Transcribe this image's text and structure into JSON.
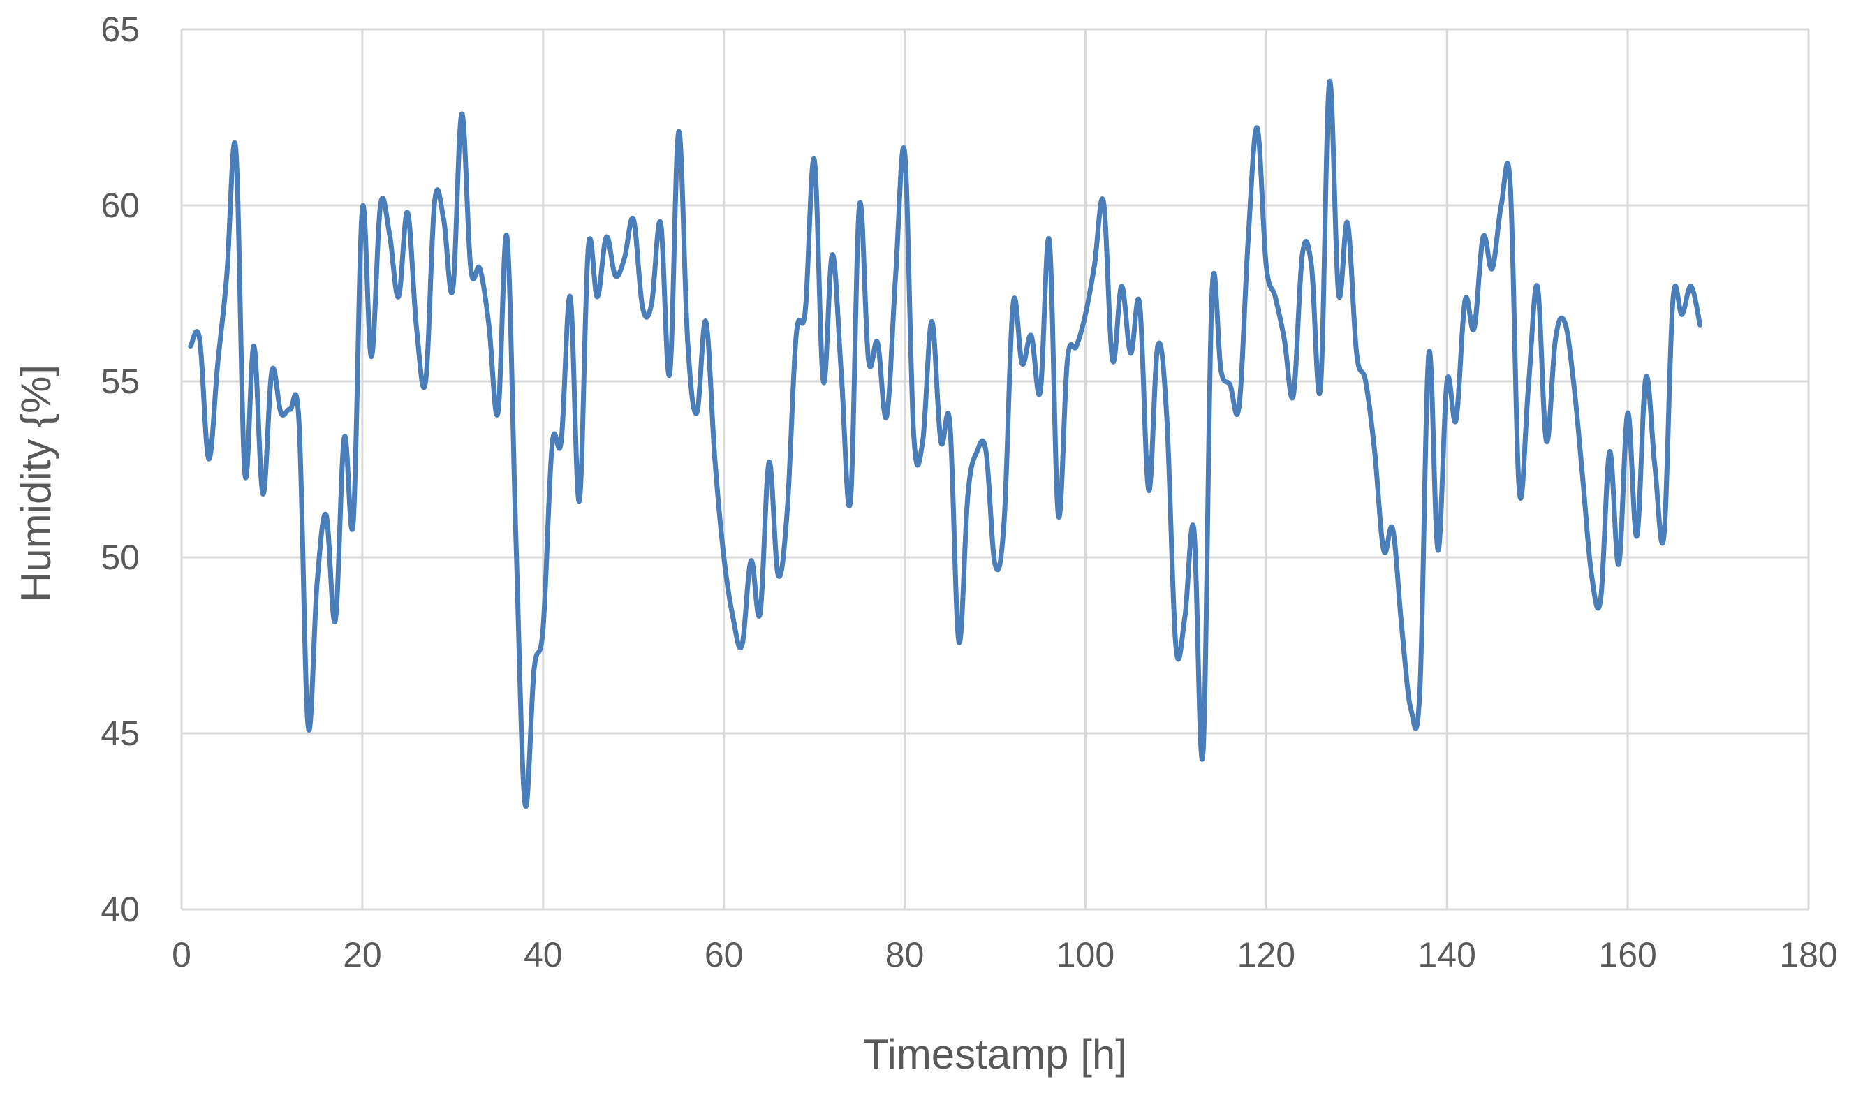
{
  "chart_data": {
    "type": "line",
    "title": "",
    "xlabel": "Timestamp [h]",
    "ylabel": "Humidity {%]",
    "xlim": [
      0,
      180
    ],
    "ylim": [
      40,
      65
    ],
    "x_ticks": [
      0,
      20,
      40,
      60,
      80,
      100,
      120,
      140,
      160,
      180
    ],
    "y_ticks": [
      40,
      45,
      50,
      55,
      60,
      65
    ],
    "x_tick_labels": [
      "0",
      "20",
      "40",
      "60",
      "80",
      "100",
      "120",
      "140",
      "160",
      "180"
    ],
    "y_tick_labels": [
      "40",
      "45",
      "50",
      "55",
      "60",
      "65"
    ],
    "grid": true,
    "legend": "none",
    "colors": {
      "series": "#4a7ebb",
      "grid": "#d9d9d9",
      "text": "#595959"
    },
    "series": [
      {
        "x": [
          1,
          2,
          3,
          4,
          5,
          6,
          7,
          8,
          9,
          10,
          11,
          12,
          13,
          14,
          15,
          16,
          17,
          18,
          19,
          20,
          21,
          22,
          23,
          24,
          25,
          26,
          27,
          28,
          29,
          30,
          31,
          32,
          33,
          34,
          35,
          36,
          37,
          38,
          39,
          40,
          41,
          42,
          43,
          44,
          45,
          46,
          47,
          48,
          49,
          50,
          51,
          52,
          53,
          54,
          55,
          56,
          57,
          58,
          59,
          60,
          61,
          62,
          63,
          64,
          65,
          66,
          67,
          68,
          69,
          70,
          71,
          72,
          73,
          74,
          75,
          76,
          77,
          78,
          79,
          80,
          81,
          82,
          83,
          84,
          85,
          86,
          87,
          88,
          89,
          90,
          91,
          92,
          93,
          94,
          95,
          96,
          97,
          98,
          99,
          100,
          101,
          102,
          103,
          104,
          105,
          106,
          107,
          108,
          109,
          110,
          111,
          112,
          113,
          114,
          115,
          116,
          117,
          118,
          119,
          120,
          121,
          122,
          123,
          124,
          125,
          126,
          127,
          128,
          129,
          130,
          131,
          132,
          133,
          134,
          135,
          136,
          137,
          138,
          139,
          140,
          141,
          142,
          143,
          144,
          145,
          146,
          147,
          148,
          149,
          150,
          151,
          152,
          153,
          154,
          155,
          156,
          157,
          158,
          159,
          160,
          161,
          162,
          163,
          164,
          165,
          166,
          167,
          168
        ],
        "values": [
          56.0,
          56.2,
          52.8,
          55.5,
          58.0,
          61.6,
          52.4,
          56.0,
          51.8,
          55.3,
          54.1,
          54.2,
          53.8,
          45.2,
          49.3,
          51.2,
          48.2,
          53.4,
          51.0,
          59.9,
          55.7,
          60.0,
          59.2,
          57.4,
          59.8,
          56.5,
          55.0,
          60.1,
          59.6,
          57.6,
          62.6,
          58.2,
          58.2,
          56.6,
          54.1,
          59.1,
          50.5,
          43.0,
          46.8,
          48.0,
          53.2,
          53.3,
          57.4,
          51.6,
          58.8,
          57.4,
          59.1,
          58.0,
          58.5,
          59.6,
          57.1,
          57.2,
          59.5,
          55.2,
          62.1,
          56.1,
          54.1,
          56.7,
          52.8,
          50.0,
          48.3,
          47.5,
          49.9,
          48.4,
          52.7,
          49.5,
          51.3,
          56.3,
          57.0,
          61.3,
          55.0,
          58.6,
          55.2,
          51.6,
          60.0,
          55.6,
          56.1,
          54.0,
          58.0,
          61.5,
          53.5,
          53.3,
          56.7,
          53.3,
          53.8,
          47.6,
          51.8,
          53.0,
          53.0,
          49.8,
          51.0,
          57.2,
          55.5,
          56.3,
          54.7,
          59.0,
          51.2,
          55.6,
          56.0,
          56.9,
          58.3,
          60.1,
          55.6,
          57.7,
          55.8,
          57.2,
          51.9,
          56.0,
          54.0,
          47.5,
          48.3,
          50.8,
          44.4,
          57.5,
          55.3,
          54.9,
          54.3,
          59.0,
          62.2,
          58.3,
          57.4,
          56.2,
          54.6,
          58.6,
          58.3,
          54.8,
          63.5,
          57.5,
          59.5,
          55.8,
          55.0,
          53.0,
          50.2,
          50.8,
          48.0,
          45.7,
          46.2,
          55.8,
          50.2,
          55.0,
          53.9,
          57.3,
          56.5,
          59.1,
          58.2,
          60.0,
          60.6,
          51.9,
          54.8,
          57.7,
          53.3,
          56.2,
          56.7,
          55.0,
          52.3,
          49.5,
          48.8,
          53.0,
          49.8,
          54.1,
          50.6,
          55.1,
          52.6,
          50.6,
          57.3,
          56.9,
          57.7,
          56.6
        ]
      }
    ]
  }
}
